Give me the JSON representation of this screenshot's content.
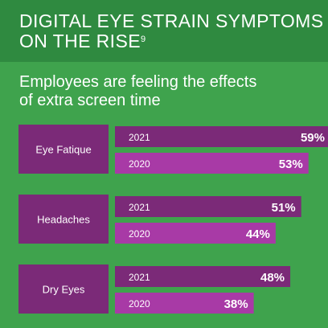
{
  "header": {
    "title_line1": "DIGITAL EYE STRAIN SYMPTOMS",
    "title_line2": "ON THE RISE",
    "footnote": "9",
    "subtitle_line1": "Employees are feeling the effects",
    "subtitle_line2": "of extra screen time"
  },
  "colors": {
    "background": "#3fa34d",
    "header_band": "#2f8a40",
    "category_box": "#7b2a78",
    "bar_2021": "#7b2a78",
    "bar_2020": "#a83aa6",
    "text": "#ffffff"
  },
  "chart_data": {
    "type": "bar",
    "orientation": "horizontal",
    "title": "DIGITAL EYE STRAIN SYMPTOMS ON THE RISE",
    "subtitle": "Employees are feeling the effects of extra screen time",
    "categories": [
      "Eye Fatique",
      "Headaches",
      "Dry Eyes"
    ],
    "series": [
      {
        "name": "2021",
        "values": [
          59,
          51,
          48
        ],
        "labels": [
          "59%",
          "51%",
          "48%"
        ]
      },
      {
        "name": "2020",
        "values": [
          53,
          44,
          38
        ],
        "labels": [
          "53%",
          "44%",
          "38%"
        ]
      }
    ],
    "unit": "%",
    "xlim": [
      0,
      100
    ],
    "grid": false,
    "legend": "none"
  }
}
